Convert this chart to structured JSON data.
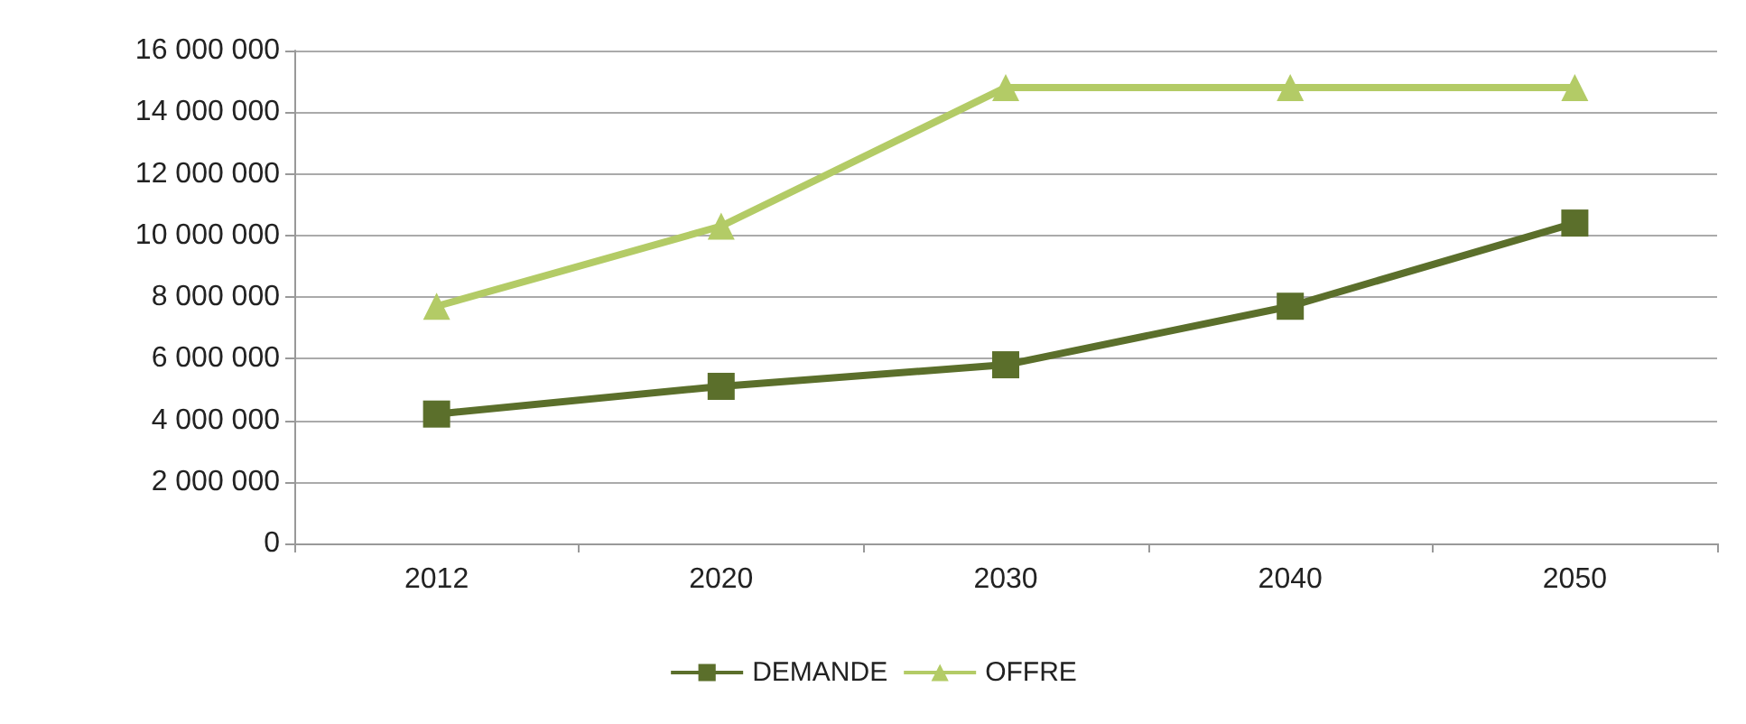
{
  "chart_data": {
    "type": "line",
    "categories": [
      "2012",
      "2020",
      "2030",
      "2040",
      "2050"
    ],
    "series": [
      {
        "name": "DEMANDE",
        "color": "#5b6f2b",
        "marker": "square",
        "values": [
          4200000,
          5100000,
          5800000,
          7700000,
          10400000
        ]
      },
      {
        "name": "OFFRE",
        "color": "#b3cb66",
        "marker": "triangle",
        "values": [
          7700000,
          10300000,
          14800000,
          14800000,
          14800000
        ]
      }
    ],
    "ylim": [
      0,
      16000000
    ],
    "yticks": [
      {
        "value": 0,
        "label": "0"
      },
      {
        "value": 2000000,
        "label": "2 000 000"
      },
      {
        "value": 4000000,
        "label": "4 000 000"
      },
      {
        "value": 6000000,
        "label": "6 000 000"
      },
      {
        "value": 8000000,
        "label": "8 000 000"
      },
      {
        "value": 10000000,
        "label": "10 000 000"
      },
      {
        "value": 12000000,
        "label": "12 000 000"
      },
      {
        "value": 14000000,
        "label": "14 000 000"
      },
      {
        "value": 16000000,
        "label": "16 000 000"
      }
    ],
    "grid": "y",
    "legend": "bottom",
    "line_style": "solid"
  }
}
